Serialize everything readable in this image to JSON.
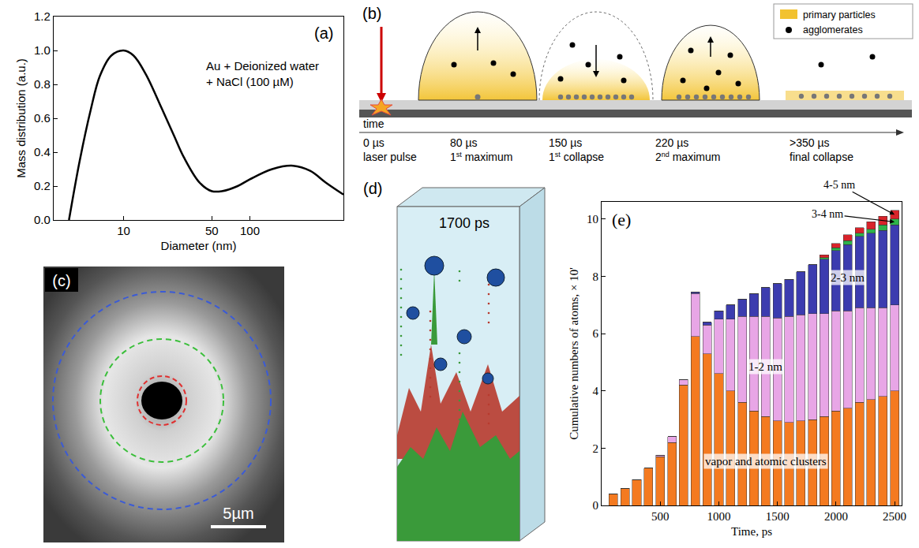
{
  "chart_data": [
    {
      "panel": "(a)",
      "type": "line",
      "color": "#000000",
      "x_label": "Diameter (nm)",
      "y_label": "Mass distribution (a.u.)",
      "annotation": [
        "Au + Deionized water",
        "+ NaCl (100 µM)"
      ],
      "x": [
        3.7,
        4.5,
        5.5,
        6.5,
        8,
        10,
        12,
        15,
        20,
        25,
        30,
        40,
        50,
        60,
        80,
        100,
        150,
        220,
        300,
        400,
        550
      ],
      "values": [
        0,
        0.35,
        0.65,
        0.85,
        0.97,
        1.0,
        0.97,
        0.86,
        0.66,
        0.5,
        0.37,
        0.22,
        0.17,
        0.17,
        0.2,
        0.24,
        0.3,
        0.32,
        0.29,
        0.22,
        0.15
      ],
      "log": "x",
      "xlim": [
        2.8,
        550
      ],
      "xticks": [
        10,
        50,
        100
      ],
      "ylim": [
        0,
        1.2
      ],
      "yticks": [
        {
          "value": 0,
          "label": "0.0"
        },
        {
          "value": 0.2,
          "label": "0.2"
        },
        {
          "value": 0.4,
          "label": "0.4"
        },
        {
          "value": 0.6,
          "label": "0.6"
        },
        {
          "value": 0.8,
          "label": "0.8"
        },
        {
          "value": 1.0,
          "label": "1.0"
        },
        {
          "value": 1.2,
          "label": "1.2"
        }
      ],
      "grid": false
    },
    {
      "panel": "(e)",
      "type": "bar",
      "stacked": true,
      "x_label": "Time, ps",
      "y_label": "Cumulative numbers of atoms, × 10'",
      "x": [
        100,
        200,
        300,
        400,
        500,
        600,
        700,
        800,
        900,
        1000,
        1100,
        1200,
        1300,
        1400,
        1500,
        1600,
        1700,
        1800,
        1900,
        2000,
        2100,
        2200,
        2300,
        2400,
        2500
      ],
      "series": [
        {
          "name": "vapor and atomic clusters",
          "color": "#f47a20",
          "values": [
            0.4,
            0.6,
            0.9,
            1.3,
            1.7,
            2.2,
            4.2,
            5.9,
            5.3,
            4.6,
            4.0,
            3.6,
            3.3,
            3.1,
            2.95,
            2.9,
            2.95,
            3.0,
            3.1,
            3.3,
            3.4,
            3.6,
            3.7,
            3.8,
            4.0
          ]
        },
        {
          "name": "1-2 nm",
          "color": "#e8a6e6",
          "values": [
            0,
            0,
            0,
            0,
            0.05,
            0.2,
            0.2,
            1.5,
            1.0,
            1.9,
            2.5,
            3.0,
            3.3,
            3.5,
            3.6,
            3.7,
            3.7,
            3.7,
            3.6,
            3.5,
            3.4,
            3.3,
            3.2,
            3.1,
            3.0
          ]
        },
        {
          "name": "2-3 nm",
          "color": "#3c3caf",
          "values": [
            0,
            0,
            0,
            0,
            0,
            0,
            0,
            0.05,
            0.1,
            0.3,
            0.5,
            0.6,
            0.8,
            1.0,
            1.2,
            1.3,
            1.5,
            1.7,
            1.9,
            2.1,
            2.3,
            2.5,
            2.6,
            2.7,
            2.8
          ]
        },
        {
          "name": "3-4 nm",
          "color": "#2db34a",
          "values": [
            0,
            0,
            0,
            0,
            0,
            0,
            0,
            0,
            0,
            0,
            0,
            0,
            0,
            0,
            0,
            0,
            0,
            0,
            0.05,
            0.1,
            0.15,
            0.1,
            0.15,
            0.2,
            0.2
          ]
        },
        {
          "name": "4-5 nm",
          "color": "#d8232a",
          "values": [
            0,
            0,
            0,
            0,
            0,
            0,
            0,
            0,
            0,
            0,
            0,
            0,
            0,
            0,
            0,
            0,
            0,
            0,
            0.1,
            0.15,
            0.2,
            0.2,
            0.25,
            0.3,
            0.3
          ]
        }
      ],
      "xlim": [
        0,
        2560
      ],
      "xticks": [
        500,
        1000,
        1500,
        2000,
        2500
      ],
      "ylim": [
        0,
        10.6
      ],
      "yticks": [
        0,
        2,
        4,
        6,
        8,
        10
      ],
      "grid": false
    }
  ],
  "diagram_b": {
    "panel": "(b)",
    "legend_items": [
      "primary particles",
      "agglomerates"
    ],
    "axis_label": "time",
    "stages": [
      {
        "time": "0 µs",
        "label": "laser pulse"
      },
      {
        "time": "80 µs",
        "label": "1st maximum"
      },
      {
        "time": "150 µs",
        "label": "1st collapse"
      },
      {
        "time": "220 µs",
        "label": "2nd maximum"
      },
      {
        "time": ">350 µs",
        "label": "final collapse"
      }
    ]
  },
  "image_c": {
    "panel": "(c)",
    "scale_bar": "5µm"
  },
  "image_d": {
    "panel": "(d)",
    "time_label": "1700 ps"
  }
}
